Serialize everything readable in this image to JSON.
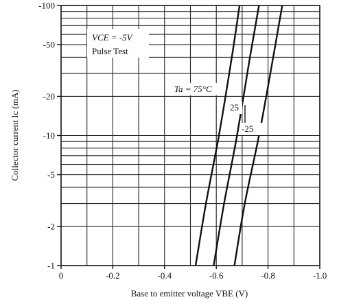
{
  "chart_data": {
    "type": "line",
    "xlabel": "Base to emitter voltage  VBE  (V)",
    "ylabel": "Collector current Ic  (mA)",
    "xlim": [
      0,
      -1.0
    ],
    "ylim": [
      -1,
      -100
    ],
    "yscale": "log",
    "grid": true,
    "x_ticks": [
      {
        "value": 0,
        "label": "0"
      },
      {
        "value": -0.2,
        "label": "-0.2"
      },
      {
        "value": -0.4,
        "label": "-0.4"
      },
      {
        "value": -0.6,
        "label": "-0.6"
      },
      {
        "value": -0.8,
        "label": "-0.8"
      },
      {
        "value": -1.0,
        "label": "-1.0"
      }
    ],
    "y_ticks": [
      {
        "value": -1,
        "label": "-1"
      },
      {
        "value": -2,
        "label": "-2"
      },
      {
        "value": -5,
        "label": "-5"
      },
      {
        "value": -10,
        "label": "-10"
      },
      {
        "value": -20,
        "label": "-20"
      },
      {
        "value": -50,
        "label": "-50"
      },
      {
        "value": -100,
        "label": "-100"
      }
    ],
    "conditions": [
      "VCE = -5V",
      "Pulse Test"
    ],
    "series": [
      {
        "name": "Ta = 75°C",
        "x": [
          -0.52,
          -0.56,
          -0.61,
          -0.66,
          -0.69
        ],
        "y": [
          -1,
          -3,
          -10,
          -40,
          -100
        ]
      },
      {
        "name": "25",
        "x": [
          -0.59,
          -0.63,
          -0.68,
          -0.73,
          -0.765
        ],
        "y": [
          -1,
          -3,
          -10,
          -40,
          -100
        ]
      },
      {
        "name": "-25",
        "x": [
          -0.67,
          -0.71,
          -0.765,
          -0.82,
          -0.855
        ],
        "y": [
          -1,
          -3,
          -10,
          -40,
          -100
        ]
      }
    ]
  }
}
